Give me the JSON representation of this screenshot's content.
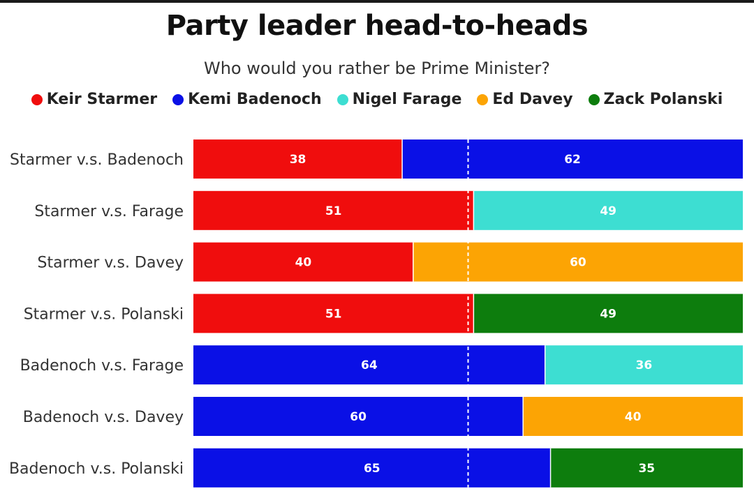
{
  "title": "Party leader head-to-heads",
  "subtitle": "Who would you rather be Prime Minister?",
  "legend": [
    {
      "name": "Keir Starmer",
      "color": "#f00d0d"
    },
    {
      "name": "Kemi Badenoch",
      "color": "#0a10e6"
    },
    {
      "name": "Nigel Farage",
      "color": "#3dded2"
    },
    {
      "name": "Ed Davey",
      "color": "#fca404"
    },
    {
      "name": "Zack Polanski",
      "color": "#0d7d0d"
    }
  ],
  "chart_data": {
    "type": "bar",
    "orientation": "horizontal",
    "stacked": true,
    "title": "Party leader head-to-heads",
    "subtitle": "Who would you rather be Prime Minister?",
    "xlim": [
      0,
      100
    ],
    "reference_line": 50,
    "categories": [
      "Starmer v.s. Badenoch",
      "Starmer v.s. Farage",
      "Starmer v.s. Davey",
      "Starmer v.s. Polanski",
      "Badenoch v.s. Farage",
      "Badenoch v.s. Davey",
      "Badenoch v.s. Polanski"
    ],
    "rows": [
      {
        "left": {
          "leader": "Keir Starmer",
          "value": 38
        },
        "right": {
          "leader": "Kemi Badenoch",
          "value": 62
        }
      },
      {
        "left": {
          "leader": "Keir Starmer",
          "value": 51
        },
        "right": {
          "leader": "Nigel Farage",
          "value": 49
        }
      },
      {
        "left": {
          "leader": "Keir Starmer",
          "value": 40
        },
        "right": {
          "leader": "Ed Davey",
          "value": 60
        }
      },
      {
        "left": {
          "leader": "Keir Starmer",
          "value": 51
        },
        "right": {
          "leader": "Zack Polanski",
          "value": 49
        }
      },
      {
        "left": {
          "leader": "Kemi Badenoch",
          "value": 64
        },
        "right": {
          "leader": "Nigel Farage",
          "value": 36
        }
      },
      {
        "left": {
          "leader": "Kemi Badenoch",
          "value": 60
        },
        "right": {
          "leader": "Ed Davey",
          "value": 40
        }
      },
      {
        "left": {
          "leader": "Kemi Badenoch",
          "value": 65
        },
        "right": {
          "leader": "Zack Polanski",
          "value": 35
        }
      }
    ]
  }
}
